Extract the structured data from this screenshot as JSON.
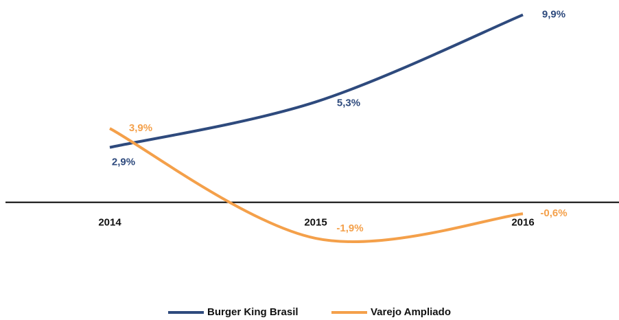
{
  "chart_data": {
    "type": "line",
    "categories": [
      "2014",
      "2015",
      "2016"
    ],
    "series": [
      {
        "name": "Burger King Brasil",
        "color": "#2e4a7d",
        "values": [
          2.9,
          5.3,
          9.9
        ],
        "value_labels": [
          "2,9%",
          "5,3%",
          "9,9%"
        ]
      },
      {
        "name": "Varejo Ampliado",
        "color": "#f4a04a",
        "values": [
          3.9,
          -1.9,
          -0.6
        ],
        "value_labels": [
          "3,9%",
          "-1,9%",
          "-0,6%"
        ]
      }
    ],
    "ylim": [
      -4,
      10.5
    ]
  }
}
